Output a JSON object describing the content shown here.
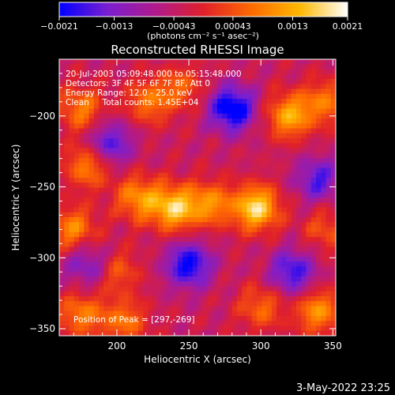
{
  "colorbar": {
    "tick_labels": [
      "-0.0021",
      "-0.0013",
      "-0.00043",
      "0.00043",
      "0.0013",
      "0.0021"
    ],
    "tick_values": [
      -0.0021,
      -0.0013,
      -0.00043,
      0.00043,
      0.0013,
      0.0021
    ],
    "range": [
      -0.0021,
      0.0021
    ],
    "units_label": "(photons cm⁻² s⁻¹ asec⁻²)",
    "colormap": [
      "#0000ff",
      "#7a1fd0",
      "#b01a8c",
      "#e0202a",
      "#ff6a00",
      "#ffb800",
      "#ffffff"
    ]
  },
  "chart_data": {
    "type": "heatmap",
    "title": "Reconstructed RHESSI Image",
    "xlabel": "Heliocentric X (arcsec)",
    "ylabel": "Heliocentric Y (arcsec)",
    "xlim": [
      160,
      352
    ],
    "ylim": [
      -355,
      -160
    ],
    "xticks": [
      200,
      250,
      300,
      350
    ],
    "yticks": [
      -200,
      -250,
      -300,
      -350
    ],
    "xtick_labels": [
      "200",
      "250",
      "300",
      "350"
    ],
    "ytick_labels": [
      "-200",
      "-250",
      "-300",
      "-350"
    ],
    "peak_position": [
      297,
      -269
    ],
    "bright_sources": [
      {
        "x": 297,
        "y": -265,
        "value": 0.0021
      },
      {
        "x": 240,
        "y": -265,
        "value": 0.0019
      },
      {
        "x": 215,
        "y": -258,
        "value": 0.0014
      },
      {
        "x": 265,
        "y": -262,
        "value": 0.0013
      },
      {
        "x": 180,
        "y": -235,
        "value": 0.0013
      },
      {
        "x": 320,
        "y": -200,
        "value": 0.0016
      },
      {
        "x": 345,
        "y": -190,
        "value": 0.0011
      },
      {
        "x": 175,
        "y": -195,
        "value": 0.0012
      },
      {
        "x": 222,
        "y": -190,
        "value": 0.0011
      },
      {
        "x": 245,
        "y": -180,
        "value": 0.0009
      },
      {
        "x": 170,
        "y": -280,
        "value": 0.0013
      },
      {
        "x": 200,
        "y": -310,
        "value": 0.0009
      },
      {
        "x": 175,
        "y": -340,
        "value": 0.0012
      },
      {
        "x": 205,
        "y": -345,
        "value": 0.0011
      },
      {
        "x": 300,
        "y": -335,
        "value": 0.001
      },
      {
        "x": 340,
        "y": -338,
        "value": 0.0014
      },
      {
        "x": 345,
        "y": -280,
        "value": 0.0008
      }
    ],
    "dark_regions": [
      {
        "x": 280,
        "y": -195,
        "value": -0.0021
      },
      {
        "x": 250,
        "y": -305,
        "value": -0.0018
      },
      {
        "x": 322,
        "y": -310,
        "value": -0.0015
      },
      {
        "x": 195,
        "y": -220,
        "value": -0.0014
      },
      {
        "x": 340,
        "y": -245,
        "value": -0.0013
      },
      {
        "x": 180,
        "y": -305,
        "value": -0.0011
      }
    ]
  },
  "annotations": {
    "time_line": "20-Jul-2003 05:09:48.000 to 05:15:48.000",
    "detectors_line": "Detectors: 3F 4F 5F 6F 7F 8F, Att 0",
    "energy_line": "Energy Range: 12.0 - 25.0 keV",
    "clean_line": "Clean     Total counts: 1.45E+04",
    "peak_line": "Position of Peak = [297,-269]"
  },
  "footer": {
    "date": "3-May-2022 23:25"
  }
}
